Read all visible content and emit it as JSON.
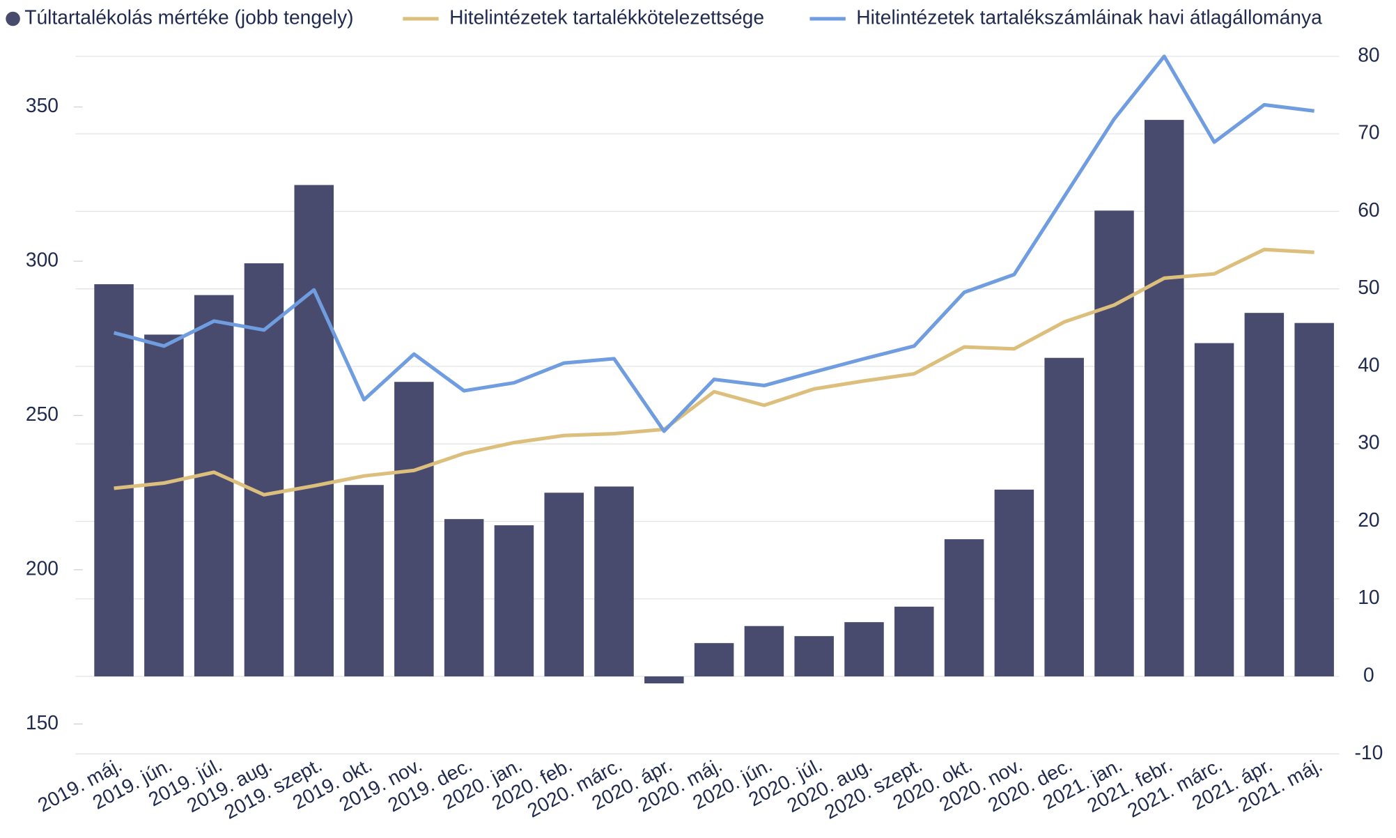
{
  "chart_data": {
    "type": "bar_line",
    "categories": [
      "2019. máj.",
      "2019. jún.",
      "2019. júl.",
      "2019. aug.",
      "2019. szept.",
      "2019. okt.",
      "2019. nov.",
      "2019. dec.",
      "2020. jan.",
      "2020. feb.",
      "2020. márc.",
      "2020. ápr.",
      "2020. máj.",
      "2020. jún.",
      "2020. júl.",
      "2020. aug.",
      "2020. szept.",
      "2020. okt.",
      "2020. nov.",
      "2020. dec.",
      "2021. jan.",
      "2021. febr.",
      "2021. márc.",
      "2021. ápr.",
      "2021. máj."
    ],
    "series": [
      {
        "name": "Túltartalékolás mértéke (jobb tengely)",
        "type": "bar",
        "axis": "y2",
        "color": "#484a6e",
        "values": [
          50.6,
          44.1,
          49.2,
          53.3,
          63.4,
          24.7,
          38.0,
          20.3,
          19.5,
          23.7,
          24.5,
          -0.9,
          4.3,
          6.5,
          5.2,
          7.0,
          9.0,
          17.7,
          24.1,
          41.1,
          60.1,
          71.8,
          43.0,
          46.9,
          45.6
        ]
      },
      {
        "name": "Hitelintézetek tartalékkötelezettsége",
        "type": "line",
        "color": "#dcbf7d",
        "values": [
          226.4,
          228.1,
          231.6,
          224.3,
          227.2,
          230.4,
          232.2,
          237.7,
          241.2,
          243.5,
          244.1,
          245.5,
          257.7,
          253.3,
          258.6,
          261.2,
          263.5,
          272.2,
          271.6,
          280.3,
          285.8,
          294.5,
          295.9,
          303.8,
          302.9
        ]
      },
      {
        "name": "Hitelintézetek tartalékszámláinak havi átlagállománya",
        "type": "line",
        "color": "#6f9de0",
        "values": [
          276.8,
          272.5,
          280.6,
          277.7,
          290.7,
          255.1,
          269.9,
          258.0,
          260.6,
          267.0,
          268.4,
          244.9,
          261.7,
          259.7,
          264.1,
          268.4,
          272.5,
          289.9,
          295.7,
          320.9,
          346.1,
          366.4,
          338.6,
          350.7,
          348.7
        ]
      }
    ],
    "ylim": [
      140.3,
      366.4
    ],
    "yticks": [
      150,
      200,
      250,
      300,
      350
    ],
    "y2lim": [
      -10,
      80
    ],
    "y2ticks": [
      -10,
      0,
      10,
      20,
      30,
      40,
      50,
      60,
      70,
      80
    ],
    "grid": true,
    "legend": "top"
  }
}
